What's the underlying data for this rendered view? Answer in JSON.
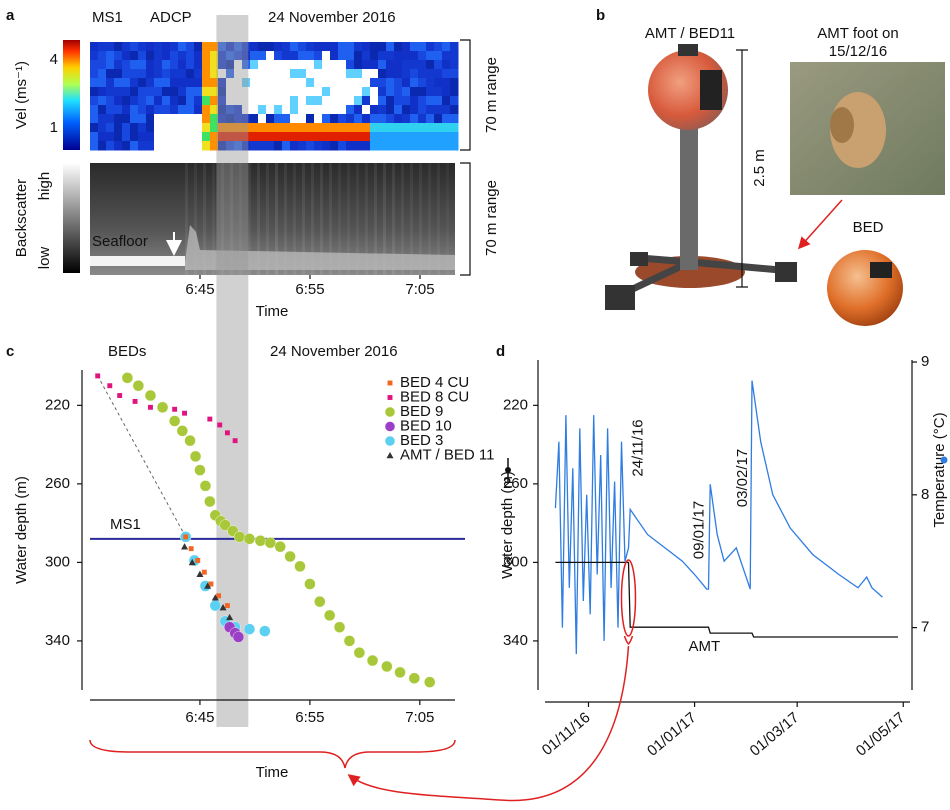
{
  "panel_a": {
    "label": "a",
    "ms1": "MS1",
    "adcp": "ADCP",
    "date": "24 November 2016",
    "vel_label": "Vel (ms⁻¹)",
    "vel_ticks": [
      4,
      1
    ],
    "range_top": "70 m range",
    "range_bottom": "70 m range",
    "backscatter_label": "Backscatter",
    "high": "high",
    "low": "low",
    "seafloor": "Seafloor",
    "time_ticks": [
      "6:45",
      "6:55",
      "7:05"
    ],
    "time_label": "Time"
  },
  "panel_b": {
    "label": "b",
    "title": "AMT / BED11",
    "scale": "2.5 m",
    "photo_caption": [
      "AMT foot on",
      "15/12/16"
    ],
    "bed": "BED"
  },
  "chart_data": [
    {
      "type": "scatter",
      "label": "c",
      "subtitle": "BEDs",
      "title": "24 November 2016",
      "xlabel": "Time",
      "ylabel": "Water depth (m)",
      "xlim": [
        395,
        428.2
      ],
      "ylim": [
        365,
        202
      ],
      "xticks": [
        {
          "value": 405,
          "label": "6:45"
        },
        {
          "value": 415,
          "label": "6:55"
        },
        {
          "value": 425,
          "label": "7:05"
        }
      ],
      "yticks": [
        220,
        260,
        300,
        340
      ],
      "hline": {
        "value": 288,
        "label": "MS1",
        "color": "#2b2b9e"
      },
      "band": [
        406.5,
        409.4
      ],
      "series": [
        {
          "name": "BED 4 CU",
          "color": "#f26522",
          "marker": "square",
          "x": [
            403.7,
            404.2,
            404.8,
            405.4,
            406,
            406.7,
            407.5
          ],
          "values": [
            287,
            293,
            299,
            305,
            311,
            317,
            322
          ]
        },
        {
          "name": "BED 8 CU",
          "color": "#e0147f",
          "marker": "square",
          "x": [
            395.7,
            396.8,
            397.7,
            399.1,
            400.5,
            402.7,
            403.6,
            405.9,
            406.8,
            407.5,
            408.2
          ],
          "values": [
            205,
            210,
            215,
            218,
            221,
            222,
            224,
            227,
            230,
            234,
            238
          ]
        },
        {
          "name": "BED 9",
          "color": "#a8c83a",
          "marker": "circle",
          "x": [
            398.4,
            399.4,
            400.5,
            401.6,
            402.7,
            403.4,
            404.1,
            404.6,
            405,
            405.5,
            405.9,
            406.4,
            406.9,
            407.3,
            408,
            408.6,
            409.5,
            410.5,
            411.4,
            412.3,
            413.2,
            414.1,
            415,
            415.9,
            416.8,
            417.7,
            418.6,
            419.5,
            420.7,
            422,
            423.2,
            424.5,
            425.9
          ],
          "values": [
            206,
            210,
            215,
            221,
            228,
            233,
            238,
            246,
            253,
            261,
            269,
            276,
            279,
            281,
            284,
            287,
            288,
            289,
            290,
            292,
            297,
            302,
            311,
            320,
            327,
            333,
            340,
            346,
            350,
            353,
            356,
            359,
            361
          ]
        },
        {
          "name": "BED 10",
          "color": "#9b3fc6",
          "marker": "circle",
          "x": [
            407.7,
            408.2,
            408.5
          ],
          "values": [
            333,
            336,
            338
          ]
        },
        {
          "name": "BED 3",
          "color": "#5bd0f0",
          "marker": "circle",
          "x": [
            403.7,
            404.5,
            405.5,
            406.4,
            407.3,
            408.2,
            409.5,
            410.9
          ],
          "values": [
            287,
            299,
            312,
            322,
            330,
            333,
            334,
            335
          ]
        },
        {
          "name": "AMT / BED 11",
          "color": "#333333",
          "marker": "triangle",
          "x": [
            403.6,
            404.3,
            405,
            405.7,
            406.4,
            407.1,
            407.7
          ],
          "values": [
            292,
            300,
            306,
            312,
            318,
            323,
            328
          ]
        }
      ]
    },
    {
      "type": "line",
      "label": "d",
      "ylabel": "Water depth (m)",
      "y2label": "Temperature (°C)",
      "xlim": [
        "2016-10-07",
        "2017-05-02"
      ],
      "xticks": [
        {
          "value": "2016-11-01",
          "label": "01/11/16"
        },
        {
          "value": "2017-01-01",
          "label": "01/01/17"
        },
        {
          "value": "2017-03-01",
          "label": "01/03/17"
        },
        {
          "value": "2017-05-01",
          "label": "01/05/17"
        }
      ],
      "ylim": [
        365,
        202
      ],
      "yticks": [
        220,
        260,
        300,
        340
      ],
      "y2lim": [
        6.53,
        8.94
      ],
      "y2ticks": [
        7,
        8,
        9
      ],
      "annotations": [
        {
          "x": "2016-11-24",
          "text": "24/11/16"
        },
        {
          "x": "2017-01-09",
          "text": "09/01/17"
        },
        {
          "x": "2017-02-03",
          "text": "03/02/17"
        }
      ],
      "series": [
        {
          "color": "#2f7de1",
          "axis": "y2",
          "x": [
            "2016-10-13",
            "2016-10-15",
            "2016-10-17",
            "2016-10-19",
            "2016-10-21",
            "2016-10-23",
            "2016-10-25",
            "2016-10-27",
            "2016-10-29",
            "2016-10-31",
            "2016-11-02",
            "2016-11-04",
            "2016-11-06",
            "2016-11-08",
            "2016-11-10",
            "2016-11-12",
            "2016-11-14",
            "2016-11-16",
            "2016-11-18",
            "2016-11-20",
            "2016-11-22",
            "2016-11-24",
            "2016-11-25",
            "2016-12-05",
            "2016-12-15",
            "2016-12-25",
            "2017-01-01",
            "2017-01-08",
            "2017-01-09",
            "2017-01-10",
            "2017-01-14",
            "2017-01-18",
            "2017-01-25",
            "2017-02-02",
            "2017-02-03",
            "2017-02-08",
            "2017-02-15",
            "2017-02-25",
            "2017-03-10",
            "2017-03-25",
            "2017-04-05",
            "2017-04-10",
            "2017-04-13",
            "2017-04-19"
          ],
          "values": [
            7.9,
            8.4,
            7.0,
            8.6,
            7.3,
            8.2,
            6.8,
            8.5,
            7.2,
            8.0,
            7.1,
            8.6,
            7.4,
            8.3,
            6.9,
            8.5,
            7.3,
            8.1,
            7.0,
            8.4,
            7.5,
            7.6,
            7.89,
            7.7,
            7.6,
            7.5,
            7.4,
            7.29,
            7.29,
            8.08,
            7.7,
            7.5,
            7.6,
            7.29,
            8.86,
            8.4,
            8.0,
            7.75,
            7.55,
            7.4,
            7.3,
            7.38,
            7.3,
            7.23
          ]
        },
        {
          "name": "AMT",
          "color": "#111111",
          "axis": "y",
          "x": [
            "2016-10-13",
            "2016-11-24",
            "2016-11-25",
            "2017-01-09",
            "2017-01-10",
            "2017-02-03",
            "2017-02-04",
            "2017-04-28"
          ],
          "values": [
            300,
            300,
            333,
            333,
            336,
            336,
            338,
            338
          ]
        }
      ]
    }
  ]
}
